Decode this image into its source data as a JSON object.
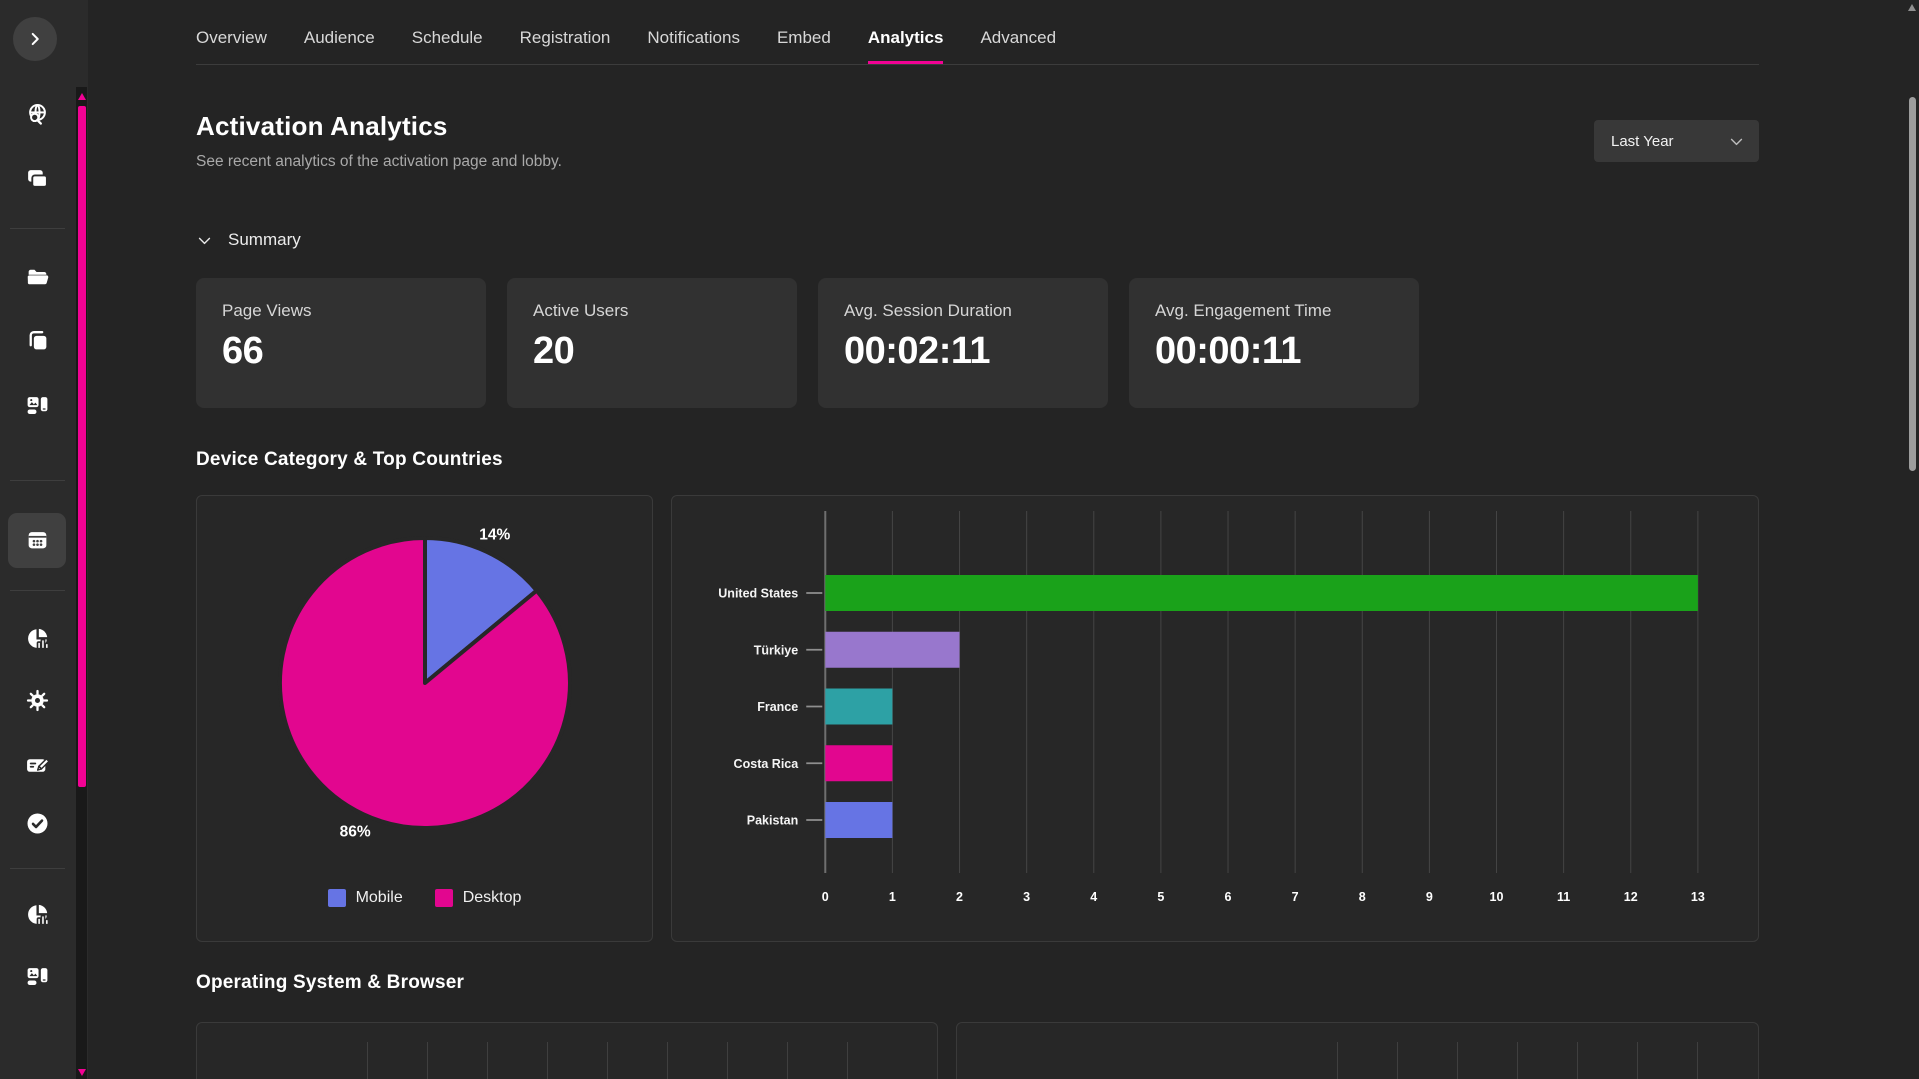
{
  "colors": {
    "accent_pink": "#f20294"
  },
  "tabs": {
    "items": [
      {
        "label": "Overview"
      },
      {
        "label": "Audience"
      },
      {
        "label": "Schedule"
      },
      {
        "label": "Registration"
      },
      {
        "label": "Notifications"
      },
      {
        "label": "Embed"
      },
      {
        "label": "Analytics"
      },
      {
        "label": "Advanced"
      }
    ],
    "active": "Analytics"
  },
  "header": {
    "title": "Activation Analytics",
    "subtitle": "See recent analytics of the activation page and lobby.",
    "range_label": "Last Year"
  },
  "summary": {
    "label": "Summary",
    "cards": [
      {
        "label": "Page Views",
        "value": "66"
      },
      {
        "label": "Active Users",
        "value": "20"
      },
      {
        "label": "Avg. Session Duration",
        "value": "00:02:11"
      },
      {
        "label": "Avg. Engagement Time",
        "value": "00:00:11"
      }
    ]
  },
  "sections": {
    "device_countries": "Device Category & Top Countries",
    "os_browser": "Operating System & Browser"
  },
  "chart_data": [
    {
      "type": "pie",
      "name": "device-category",
      "slices": [
        {
          "name": "Mobile",
          "value": 14,
          "label": "14%",
          "color": "#6674e4"
        },
        {
          "name": "Desktop",
          "value": 86,
          "label": "86%",
          "color": "#e2068f"
        }
      ],
      "legend_position": "bottom",
      "start_angle": "top",
      "direction": "clockwise"
    },
    {
      "type": "bar",
      "name": "top-countries",
      "orientation": "horizontal",
      "categories": [
        "United States",
        "Türkiye",
        "France",
        "Costa Rica",
        "Pakistan"
      ],
      "values": [
        13,
        2,
        1,
        1,
        1
      ],
      "colors": [
        "#1aa21a",
        "#9877cd",
        "#2da1a5",
        "#e2068f",
        "#6674e4"
      ],
      "xlim": [
        0,
        13
      ],
      "xticks": [
        0,
        1,
        2,
        3,
        4,
        5,
        6,
        7,
        8,
        9,
        10,
        11,
        12,
        13
      ],
      "grid": true,
      "legend_position": "none"
    }
  ],
  "sidebar": {
    "items": [
      {
        "icon": "chevron-right-icon",
        "name": "expand-sidebar"
      },
      {
        "icon": "globe-search-icon",
        "name": "discover"
      },
      {
        "icon": "stack-icon",
        "name": "content-stack"
      },
      {
        "icon": "folder-open-icon",
        "name": "files"
      },
      {
        "icon": "copy-icon",
        "name": "pages"
      },
      {
        "icon": "device-preview-icon",
        "name": "media-layout"
      },
      {
        "icon": "calendar-icon",
        "name": "events",
        "active": true
      },
      {
        "icon": "pie-chart-icon",
        "name": "analytics"
      },
      {
        "icon": "gear-icon",
        "name": "settings"
      },
      {
        "icon": "card-edit-icon",
        "name": "registration"
      },
      {
        "icon": "check-circle-icon",
        "name": "approvals"
      },
      {
        "icon": "pie-chart-icon",
        "name": "reports"
      },
      {
        "icon": "device-preview-icon",
        "name": "devices"
      }
    ]
  }
}
